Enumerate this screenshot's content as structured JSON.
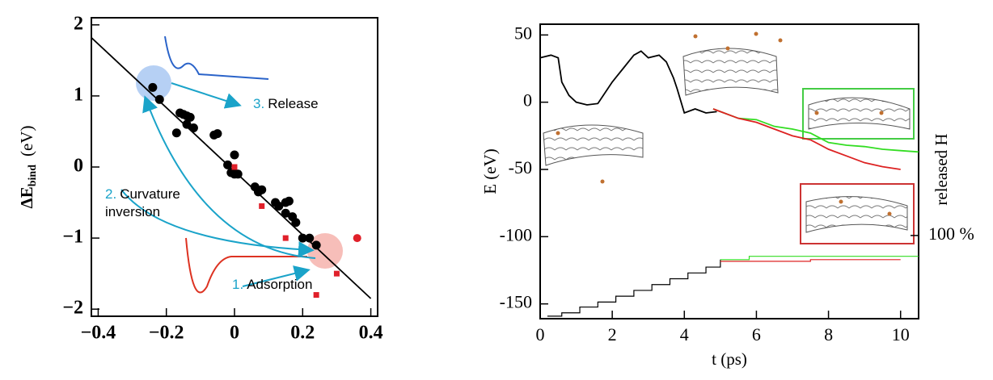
{
  "chart_data": [
    {
      "type": "scatter",
      "y_label": "ΔE",
      "y_label_sub": "bind",
      "y_label_unit": "(eV)",
      "xlim": [
        -0.42,
        0.42
      ],
      "ylim": [
        -2.1,
        2.1
      ],
      "xticks": [
        {
          "value": -0.4,
          "label": "−0.4"
        },
        {
          "value": -0.2,
          "label": "−0.2"
        },
        0,
        0.2,
        0.4
      ],
      "yticks": [
        {
          "value": -2,
          "label": "−2"
        },
        {
          "value": -1,
          "label": "−1"
        },
        0,
        1,
        2
      ],
      "series": [
        {
          "marker": "line",
          "color": "#000000",
          "x": [
            -0.42,
            0.4
          ],
          "values": [
            1.82,
            -1.85
          ]
        },
        {
          "marker": "dot",
          "color": "#000000",
          "x": [
            -0.24,
            -0.22,
            -0.17,
            -0.16,
            -0.15,
            -0.14,
            -0.13,
            -0.14,
            -0.12,
            -0.06,
            -0.05,
            -0.02,
            0.0,
            -0.01,
            0.0,
            0.01,
            0.06,
            0.07,
            0.08,
            0.12,
            0.13,
            0.15,
            0.16,
            0.15,
            0.17,
            0.18,
            0.2,
            0.22,
            0.24
          ],
          "values": [
            1.12,
            0.95,
            0.48,
            0.76,
            0.74,
            0.72,
            0.7,
            0.6,
            0.55,
            0.45,
            0.47,
            0.03,
            0.17,
            -0.08,
            -0.1,
            -0.1,
            -0.28,
            -0.35,
            -0.32,
            -0.5,
            -0.55,
            -0.5,
            -0.48,
            -0.65,
            -0.7,
            -0.78,
            -1.0,
            -1.0,
            -1.1
          ]
        },
        {
          "marker": "square",
          "color": "#e0202a",
          "x": [
            0.0,
            0.08,
            0.15,
            0.3,
            0.24
          ],
          "values": [
            0.0,
            -0.55,
            -1.0,
            -1.5,
            -1.8
          ]
        },
        {
          "marker": "circle",
          "color": "#e0202a",
          "x": [
            0.36
          ],
          "values": [
            -1.0
          ]
        }
      ],
      "annotations": [
        {
          "number": "3.",
          "lines": [
            "Release"
          ]
        },
        {
          "number": "2.",
          "lines": [
            "Curvature",
            "inversion"
          ]
        },
        {
          "number": "1.",
          "lines": [
            "Adsorption"
          ]
        }
      ],
      "number_color": "#1aa3c9"
    },
    {
      "type": "line",
      "x_label": "t (ps)",
      "y_label": "E (eV)",
      "y2_label": "released H",
      "xlim": [
        0,
        10.5
      ],
      "ylim": [
        -161,
        58
      ],
      "y2lim": [
        0,
        354
      ],
      "xticks": [
        0,
        2,
        4,
        6,
        8,
        10
      ],
      "yticks": [
        -150,
        -100,
        -50,
        0,
        50
      ],
      "y2ticks": [
        {
          "value": 100,
          "label": "100 %"
        }
      ],
      "series": [
        {
          "color": "#000000",
          "x": [
            0,
            0.3,
            0.5,
            0.6,
            0.8,
            1.0,
            1.3,
            1.6,
            2.0,
            2.3,
            2.6,
            2.8,
            3.0,
            3.3,
            3.5,
            3.7,
            3.8,
            4.0,
            4.3,
            4.6,
            4.9
          ],
          "values": [
            33,
            35,
            33,
            15,
            5,
            0,
            -2,
            -1,
            15,
            25,
            35,
            38,
            33,
            35,
            30,
            18,
            10,
            -8,
            -5,
            -8,
            -7
          ]
        },
        {
          "color": "#33dd22",
          "x": [
            4.8,
            5.5,
            6,
            6.5,
            7,
            7.5,
            8,
            8.5,
            9,
            9.5,
            10,
            10.5
          ],
          "values": [
            -5,
            -12,
            -13,
            -18,
            -20,
            -23,
            -30,
            -32,
            -33,
            -35,
            -36,
            -37
          ]
        },
        {
          "color": "#dd2222",
          "x": [
            4.8,
            5.5,
            6,
            6.5,
            7,
            7.5,
            8,
            8.5,
            9,
            9.5,
            10
          ],
          "values": [
            -5,
            -12,
            -15,
            -20,
            -25,
            -28,
            -35,
            -40,
            -45,
            -48,
            -50
          ]
        },
        {
          "color": "#000000",
          "axis": "y2",
          "step": true,
          "x": [
            0.2,
            0.6,
            1.1,
            1.6,
            2.1,
            2.6,
            3.1,
            3.6,
            4.1,
            4.6,
            5.0
          ],
          "values": [
            3,
            7,
            14,
            20,
            27,
            34,
            41,
            48,
            55,
            62,
            71
          ]
        },
        {
          "color": "#33dd22",
          "axis": "y2",
          "step": true,
          "x": [
            5.0,
            5.8,
            10.5
          ],
          "values": [
            71,
            75,
            75
          ]
        },
        {
          "color": "#dd2222",
          "axis": "y2",
          "step": true,
          "x": [
            5.0,
            7.5,
            10.0
          ],
          "values": [
            69,
            71,
            71
          ]
        }
      ]
    }
  ]
}
